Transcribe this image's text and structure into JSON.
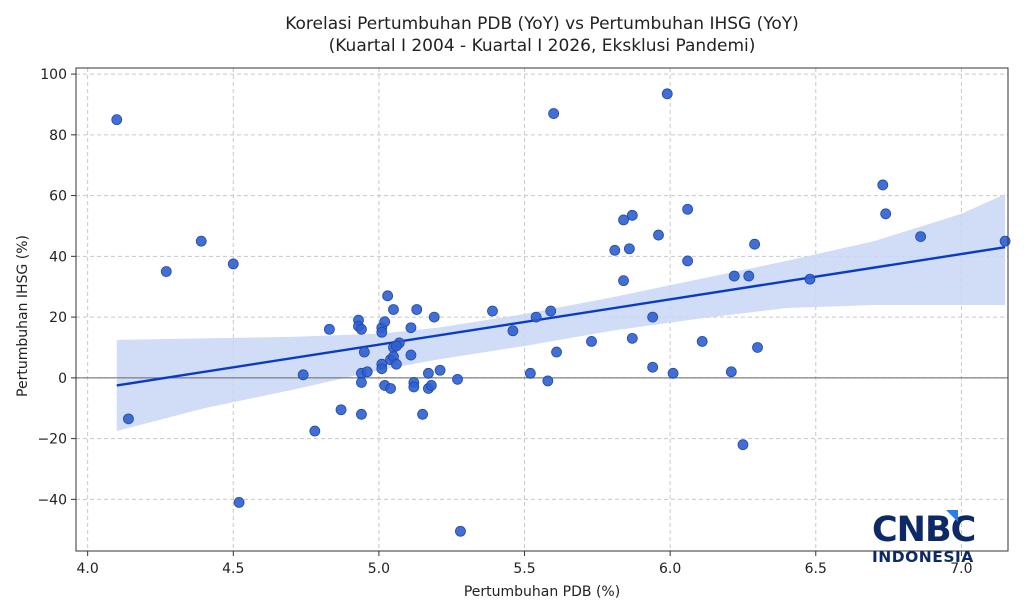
{
  "chart_data": {
    "type": "scatter",
    "title": "Korelasi Pertumbuhan PDB (YoY) vs Pertumbuhan IHSG (YoY)",
    "subtitle": "(Kuartal I 2004 - Kuartal I 2026, Eksklusi Pandemi)",
    "xlabel": "Pertumbuhan PDB (%)",
    "ylabel": "Pertumbuhan IHSG (%)",
    "xlim": [
      3.96,
      7.16
    ],
    "ylim": [
      -57,
      102
    ],
    "xticks": [
      4.0,
      4.5,
      5.0,
      5.5,
      6.0,
      6.5,
      7.0
    ],
    "xtick_labels": [
      "4.0",
      "4.5",
      "5.0",
      "5.5",
      "6.0",
      "6.5",
      "7.0"
    ],
    "yticks": [
      -40,
      -20,
      0,
      20,
      40,
      60,
      80,
      100
    ],
    "ytick_labels": [
      "−40",
      "−20",
      "0",
      "20",
      "40",
      "60",
      "80",
      "100"
    ],
    "grid": true,
    "zero_line": true,
    "point_color": "#2f5fcf",
    "line_color": "#0a3bc4",
    "band_color": "#c9d6f5",
    "points": [
      {
        "x": 4.1,
        "y": 85
      },
      {
        "x": 4.14,
        "y": -13.5
      },
      {
        "x": 4.27,
        "y": 35
      },
      {
        "x": 4.39,
        "y": 45
      },
      {
        "x": 4.5,
        "y": 37.5
      },
      {
        "x": 4.52,
        "y": -41
      },
      {
        "x": 4.74,
        "y": 1
      },
      {
        "x": 4.78,
        "y": -17.5
      },
      {
        "x": 4.83,
        "y": 16
      },
      {
        "x": 4.87,
        "y": -10.5
      },
      {
        "x": 4.93,
        "y": 19
      },
      {
        "x": 4.93,
        "y": 17
      },
      {
        "x": 4.94,
        "y": 16
      },
      {
        "x": 4.94,
        "y": 1.5
      },
      {
        "x": 4.94,
        "y": -1.5
      },
      {
        "x": 4.94,
        "y": -12
      },
      {
        "x": 4.95,
        "y": 8.5
      },
      {
        "x": 4.96,
        "y": 2
      },
      {
        "x": 5.01,
        "y": 16.5
      },
      {
        "x": 5.01,
        "y": 15
      },
      {
        "x": 5.01,
        "y": 4.5
      },
      {
        "x": 5.01,
        "y": 3
      },
      {
        "x": 5.02,
        "y": 18.5
      },
      {
        "x": 5.02,
        "y": -2.5
      },
      {
        "x": 5.03,
        "y": 27
      },
      {
        "x": 5.04,
        "y": 6
      },
      {
        "x": 5.04,
        "y": -3.5
      },
      {
        "x": 5.05,
        "y": 22.5
      },
      {
        "x": 5.05,
        "y": 10
      },
      {
        "x": 5.05,
        "y": 7
      },
      {
        "x": 5.06,
        "y": 4.5
      },
      {
        "x": 5.07,
        "y": 11.5
      },
      {
        "x": 5.06,
        "y": 10.5
      },
      {
        "x": 5.11,
        "y": 16.5
      },
      {
        "x": 5.11,
        "y": 7.5
      },
      {
        "x": 5.12,
        "y": -1.5
      },
      {
        "x": 5.12,
        "y": -3
      },
      {
        "x": 5.13,
        "y": 22.5
      },
      {
        "x": 5.15,
        "y": -12
      },
      {
        "x": 5.17,
        "y": 1.5
      },
      {
        "x": 5.17,
        "y": -3.5
      },
      {
        "x": 5.18,
        "y": -2.5
      },
      {
        "x": 5.19,
        "y": 20
      },
      {
        "x": 5.21,
        "y": 2.5
      },
      {
        "x": 5.27,
        "y": -0.5
      },
      {
        "x": 5.28,
        "y": -50.5
      },
      {
        "x": 5.39,
        "y": 22
      },
      {
        "x": 5.46,
        "y": 15.5
      },
      {
        "x": 5.52,
        "y": 1.5
      },
      {
        "x": 5.54,
        "y": 20
      },
      {
        "x": 5.58,
        "y": -1
      },
      {
        "x": 5.59,
        "y": 22
      },
      {
        "x": 5.6,
        "y": 87
      },
      {
        "x": 5.61,
        "y": 8.5
      },
      {
        "x": 5.73,
        "y": 12
      },
      {
        "x": 5.81,
        "y": 42
      },
      {
        "x": 5.84,
        "y": 52
      },
      {
        "x": 5.84,
        "y": 32
      },
      {
        "x": 5.86,
        "y": 42.5
      },
      {
        "x": 5.87,
        "y": 53.5
      },
      {
        "x": 5.87,
        "y": 13
      },
      {
        "x": 5.94,
        "y": 20
      },
      {
        "x": 5.94,
        "y": 3.5
      },
      {
        "x": 5.96,
        "y": 47
      },
      {
        "x": 5.99,
        "y": 93.5
      },
      {
        "x": 6.01,
        "y": 1.5
      },
      {
        "x": 6.06,
        "y": 55.5
      },
      {
        "x": 6.06,
        "y": 38.5
      },
      {
        "x": 6.11,
        "y": 12
      },
      {
        "x": 6.21,
        "y": 2
      },
      {
        "x": 6.22,
        "y": 33.5
      },
      {
        "x": 6.25,
        "y": -22
      },
      {
        "x": 6.27,
        "y": 33.5
      },
      {
        "x": 6.29,
        "y": 44
      },
      {
        "x": 6.3,
        "y": 10
      },
      {
        "x": 6.48,
        "y": 32.5
      },
      {
        "x": 6.73,
        "y": 63.5
      },
      {
        "x": 6.74,
        "y": 54
      },
      {
        "x": 6.86,
        "y": 46.5
      },
      {
        "x": 7.15,
        "y": 45
      }
    ],
    "regression": {
      "x0": 4.1,
      "y0": -2.5,
      "x1": 7.15,
      "y1": 43
    },
    "confidence_band": {
      "x": [
        4.1,
        4.4,
        4.7,
        5.0,
        5.2,
        5.5,
        5.8,
        6.1,
        6.4,
        6.7,
        7.0,
        7.15
      ],
      "upper": [
        12.5,
        13,
        13.5,
        14.5,
        16.5,
        21,
        26.5,
        32.5,
        38.5,
        45,
        54,
        60.5
      ],
      "lower": [
        -17.5,
        -10,
        -4,
        2.5,
        6,
        10.5,
        15.5,
        19.5,
        23,
        24,
        24,
        24
      ]
    }
  },
  "logo": {
    "main": "CNBC",
    "sub": "INDONESIA"
  }
}
